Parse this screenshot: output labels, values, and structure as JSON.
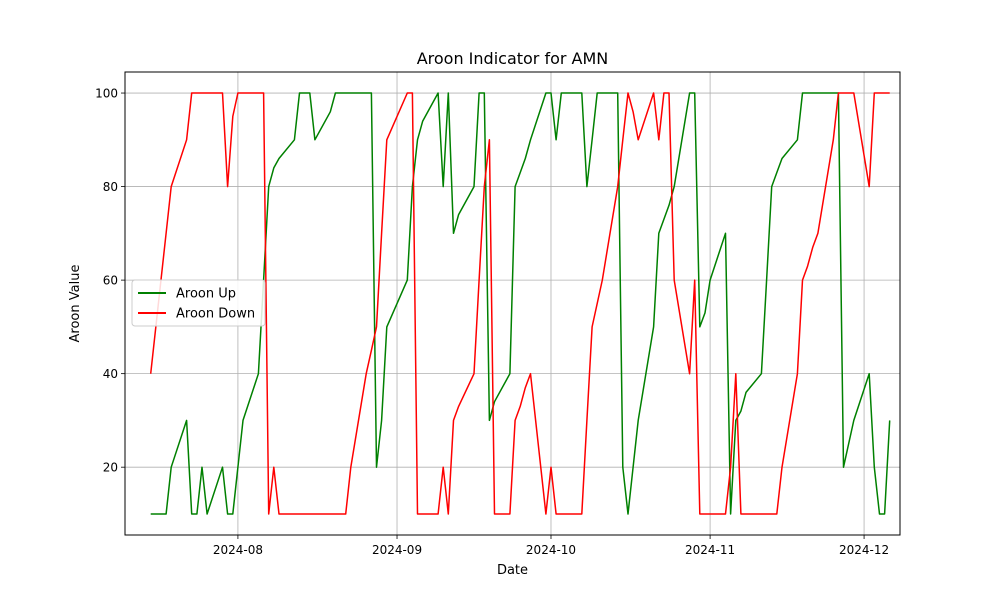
{
  "chart_data": {
    "type": "line",
    "title": "Aroon Indicator for AMN",
    "xlabel": "Date",
    "ylabel": "Aroon Value",
    "ylim": [
      5.5,
      104.5
    ],
    "xlim": [
      "2024-07-10",
      "2024-12-08"
    ],
    "grid": true,
    "legend_position": "center-left",
    "x_ticks": [
      "2024-08-01",
      "2024-09-01",
      "2024-10-01",
      "2024-11-01",
      "2024-12-01"
    ],
    "x_tick_labels": [
      "2024-08",
      "2024-09",
      "2024-10",
      "2024-11",
      "2024-12"
    ],
    "y_ticks": [
      20,
      40,
      60,
      80,
      100
    ],
    "y_tick_labels": [
      "20",
      "40",
      "60",
      "80",
      "100"
    ],
    "series": [
      {
        "name": "Aroon Up",
        "color": "#008000",
        "x": [
          "2024-07-15",
          "2024-07-18",
          "2024-07-19",
          "2024-07-22",
          "2024-07-23",
          "2024-07-24",
          "2024-07-25",
          "2024-07-26",
          "2024-07-29",
          "2024-07-30",
          "2024-07-31",
          "2024-08-01",
          "2024-08-02",
          "2024-08-05",
          "2024-08-06",
          "2024-08-07",
          "2024-08-08",
          "2024-08-09",
          "2024-08-12",
          "2024-08-13",
          "2024-08-14",
          "2024-08-15",
          "2024-08-16",
          "2024-08-19",
          "2024-08-20",
          "2024-08-21",
          "2024-08-22",
          "2024-08-23",
          "2024-08-26",
          "2024-08-27",
          "2024-08-28",
          "2024-08-29",
          "2024-08-30",
          "2024-09-03",
          "2024-09-04",
          "2024-09-05",
          "2024-09-06",
          "2024-09-09",
          "2024-09-10",
          "2024-09-11",
          "2024-09-12",
          "2024-09-13",
          "2024-09-16",
          "2024-09-17",
          "2024-09-18",
          "2024-09-19",
          "2024-09-20",
          "2024-09-23",
          "2024-09-24",
          "2024-09-25",
          "2024-09-26",
          "2024-09-27",
          "2024-09-30",
          "2024-10-01",
          "2024-10-02",
          "2024-10-03",
          "2024-10-04",
          "2024-10-07",
          "2024-10-08",
          "2024-10-09",
          "2024-10-10",
          "2024-10-11",
          "2024-10-14",
          "2024-10-15",
          "2024-10-16",
          "2024-10-17",
          "2024-10-18",
          "2024-10-21",
          "2024-10-22",
          "2024-10-23",
          "2024-10-24",
          "2024-10-25",
          "2024-10-28",
          "2024-10-29",
          "2024-10-30",
          "2024-10-31",
          "2024-11-01",
          "2024-11-04",
          "2024-11-05",
          "2024-11-06",
          "2024-11-07",
          "2024-11-08",
          "2024-11-11",
          "2024-11-12",
          "2024-11-13",
          "2024-11-14",
          "2024-11-15",
          "2024-11-18",
          "2024-11-19",
          "2024-11-20",
          "2024-11-21",
          "2024-11-22",
          "2024-11-25",
          "2024-11-26",
          "2024-11-27",
          "2024-11-29",
          "2024-12-02",
          "2024-12-03",
          "2024-12-04",
          "2024-12-05",
          "2024-12-06"
        ],
        "y": [
          10,
          10,
          20,
          30,
          10,
          10,
          20,
          10,
          20,
          10,
          10,
          20,
          30,
          40,
          60,
          80,
          84,
          86,
          90,
          100,
          100,
          100,
          90,
          96,
          100,
          100,
          100,
          100,
          100,
          100,
          20,
          30,
          50,
          60,
          80,
          90,
          94,
          100,
          80,
          100,
          70,
          74,
          80,
          100,
          100,
          30,
          34,
          40,
          80,
          83,
          86,
          90,
          100,
          100,
          90,
          100,
          100,
          100,
          80,
          90,
          100,
          100,
          100,
          20,
          10,
          20,
          30,
          50,
          70,
          73,
          76,
          80,
          100,
          100,
          50,
          53,
          60,
          70,
          10,
          30,
          32,
          36,
          40,
          60,
          80,
          83,
          86,
          90,
          100,
          100,
          100,
          100,
          100,
          100,
          20,
          30,
          40,
          20,
          10,
          10,
          30
        ]
      },
      {
        "name": "Aroon Down",
        "color": "#ff0000",
        "x": [
          "2024-07-15",
          "2024-07-18",
          "2024-07-19",
          "2024-07-22",
          "2024-07-23",
          "2024-07-24",
          "2024-07-25",
          "2024-07-26",
          "2024-07-29",
          "2024-07-30",
          "2024-07-31",
          "2024-08-01",
          "2024-08-02",
          "2024-08-05",
          "2024-08-06",
          "2024-08-07",
          "2024-08-08",
          "2024-08-09",
          "2024-08-12",
          "2024-08-13",
          "2024-08-14",
          "2024-08-15",
          "2024-08-16",
          "2024-08-19",
          "2024-08-20",
          "2024-08-21",
          "2024-08-22",
          "2024-08-23",
          "2024-08-26",
          "2024-08-27",
          "2024-08-28",
          "2024-08-29",
          "2024-08-30",
          "2024-09-03",
          "2024-09-04",
          "2024-09-05",
          "2024-09-06",
          "2024-09-09",
          "2024-09-10",
          "2024-09-11",
          "2024-09-12",
          "2024-09-13",
          "2024-09-16",
          "2024-09-17",
          "2024-09-18",
          "2024-09-19",
          "2024-09-20",
          "2024-09-23",
          "2024-09-24",
          "2024-09-25",
          "2024-09-26",
          "2024-09-27",
          "2024-09-30",
          "2024-10-01",
          "2024-10-02",
          "2024-10-03",
          "2024-10-04",
          "2024-10-07",
          "2024-10-08",
          "2024-10-09",
          "2024-10-10",
          "2024-10-11",
          "2024-10-14",
          "2024-10-15",
          "2024-10-16",
          "2024-10-17",
          "2024-10-18",
          "2024-10-21",
          "2024-10-22",
          "2024-10-23",
          "2024-10-24",
          "2024-10-25",
          "2024-10-28",
          "2024-10-29",
          "2024-10-30",
          "2024-10-31",
          "2024-11-01",
          "2024-11-04",
          "2024-11-05",
          "2024-11-06",
          "2024-11-07",
          "2024-11-08",
          "2024-11-11",
          "2024-11-12",
          "2024-11-13",
          "2024-11-14",
          "2024-11-15",
          "2024-11-18",
          "2024-11-19",
          "2024-11-20",
          "2024-11-21",
          "2024-11-22",
          "2024-11-25",
          "2024-11-26",
          "2024-11-27",
          "2024-11-29",
          "2024-12-02",
          "2024-12-03",
          "2024-12-04",
          "2024-12-05",
          "2024-12-06"
        ],
        "y": [
          40,
          70,
          80,
          90,
          100,
          100,
          100,
          100,
          100,
          80,
          95,
          100,
          100,
          100,
          100,
          10,
          20,
          10,
          10,
          10,
          10,
          10,
          10,
          10,
          10,
          10,
          10,
          20,
          40,
          45,
          50,
          70,
          90,
          100,
          100,
          10,
          10,
          10,
          20,
          10,
          30,
          33,
          40,
          60,
          80,
          90,
          10,
          10,
          30,
          33,
          37,
          40,
          10,
          20,
          10,
          10,
          10,
          10,
          30,
          50,
          55,
          60,
          80,
          90,
          100,
          96,
          90,
          100,
          90,
          100,
          100,
          60,
          40,
          60,
          10,
          10,
          10,
          10,
          20,
          40,
          10,
          10,
          10,
          10,
          10,
          10,
          20,
          40,
          60,
          63,
          67,
          70,
          90,
          100,
          100,
          100,
          80,
          100,
          100,
          100,
          100
        ]
      }
    ]
  }
}
